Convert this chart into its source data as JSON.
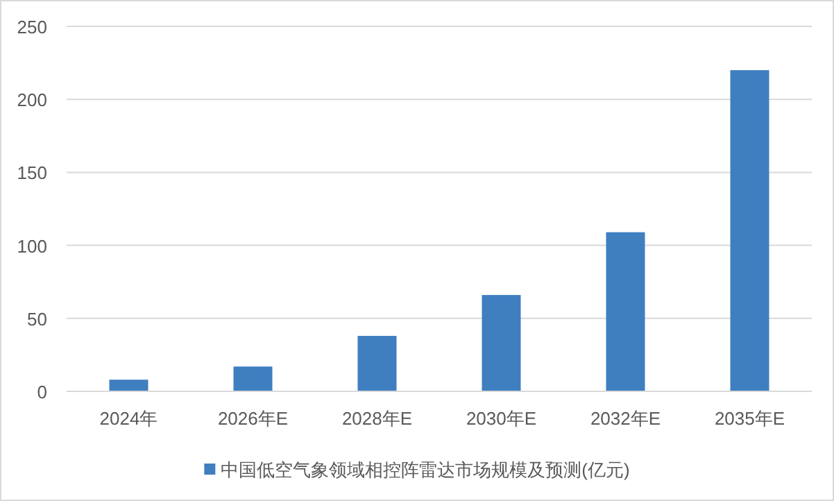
{
  "chart_data": {
    "type": "bar",
    "categories": [
      "2024年",
      "2026年E",
      "2028年E",
      "2030年E",
      "2032年E",
      "2035年E"
    ],
    "series": [
      {
        "name": "中国低空气象领域相控阵雷达市场规模及预测(亿元)",
        "color": "#3f7fc0",
        "values": [
          8,
          17,
          38,
          66,
          109,
          220
        ]
      }
    ],
    "ylim": [
      0,
      250
    ],
    "yticks": [
      0,
      50,
      100,
      150,
      200,
      250
    ],
    "grid": "y",
    "legend": "bottom"
  }
}
